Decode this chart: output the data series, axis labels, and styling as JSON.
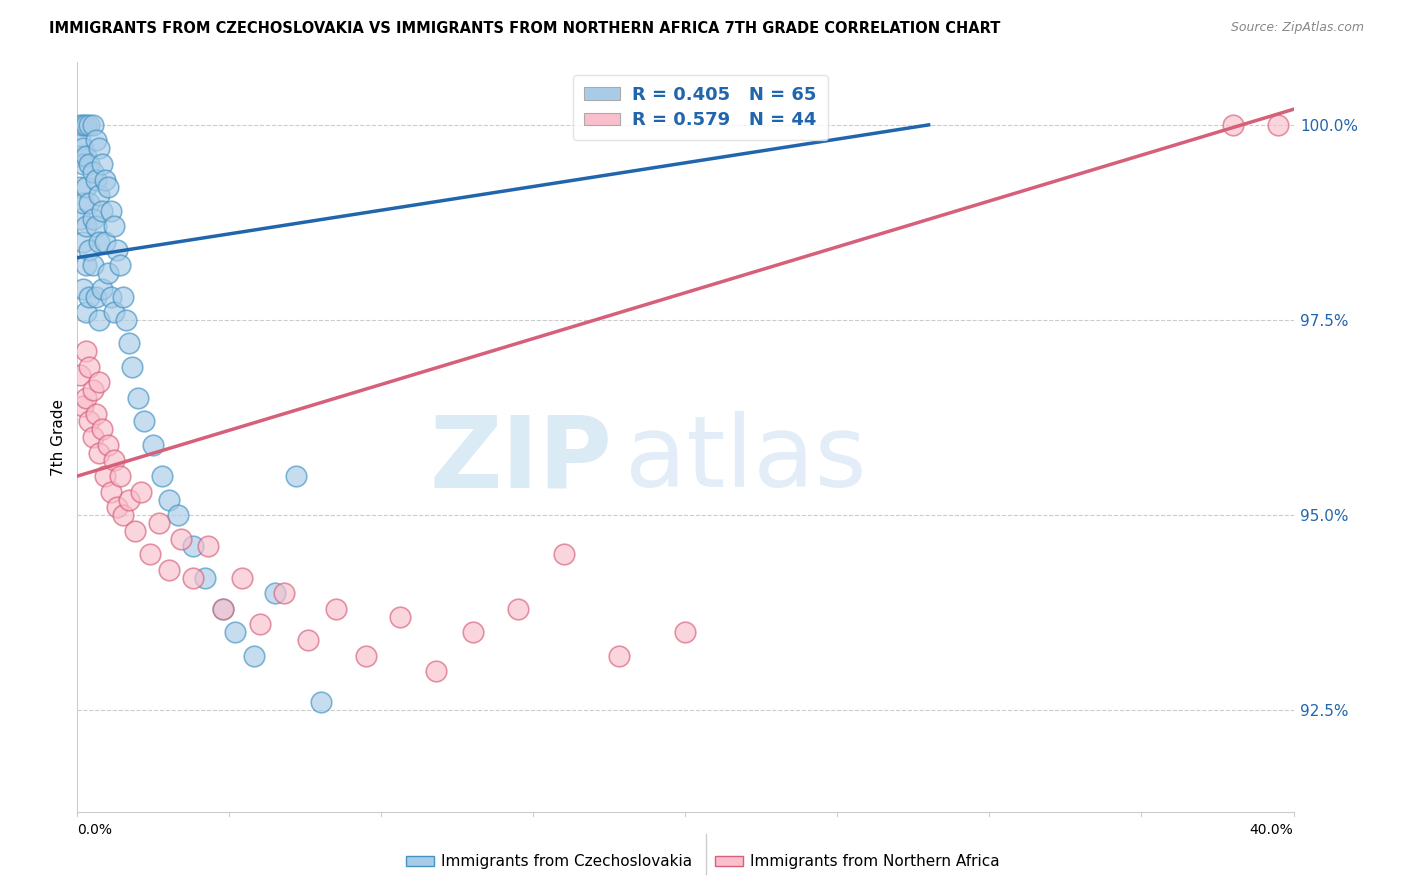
{
  "title": "IMMIGRANTS FROM CZECHOSLOVAKIA VS IMMIGRANTS FROM NORTHERN AFRICA 7TH GRADE CORRELATION CHART",
  "source": "Source: ZipAtlas.com",
  "ylabel": "7th Grade",
  "y_ticks": [
    92.5,
    95.0,
    97.5,
    100.0
  ],
  "y_tick_labels": [
    "92.5%",
    "95.0%",
    "97.5%",
    "100.0%"
  ],
  "x_min": 0.0,
  "x_max": 0.4,
  "y_min": 91.2,
  "y_max": 100.8,
  "legend_r_blue": "R = 0.405",
  "legend_n_blue": "N = 65",
  "legend_r_pink": "R = 0.579",
  "legend_n_pink": "N = 44",
  "blue_color": "#a8cce8",
  "pink_color": "#f9bfcc",
  "blue_edge_color": "#4393c3",
  "pink_edge_color": "#d6607a",
  "blue_line_color": "#2166ac",
  "pink_line_color": "#d6607a",
  "legend_text_color": "#2166ac",
  "blue_x": [
    0.001,
    0.001,
    0.001,
    0.001,
    0.001,
    0.002,
    0.002,
    0.002,
    0.002,
    0.002,
    0.002,
    0.003,
    0.003,
    0.003,
    0.003,
    0.003,
    0.003,
    0.004,
    0.004,
    0.004,
    0.004,
    0.004,
    0.005,
    0.005,
    0.005,
    0.005,
    0.006,
    0.006,
    0.006,
    0.006,
    0.007,
    0.007,
    0.007,
    0.007,
    0.008,
    0.008,
    0.008,
    0.009,
    0.009,
    0.01,
    0.01,
    0.011,
    0.011,
    0.012,
    0.012,
    0.013,
    0.014,
    0.015,
    0.016,
    0.017,
    0.018,
    0.02,
    0.022,
    0.025,
    0.028,
    0.03,
    0.033,
    0.038,
    0.042,
    0.048,
    0.052,
    0.058,
    0.065,
    0.072,
    0.08
  ],
  "blue_y": [
    100.0,
    99.8,
    99.6,
    99.2,
    98.8,
    100.0,
    99.7,
    99.5,
    99.0,
    98.5,
    97.9,
    100.0,
    99.6,
    99.2,
    98.7,
    98.2,
    97.6,
    100.0,
    99.5,
    99.0,
    98.4,
    97.8,
    100.0,
    99.4,
    98.8,
    98.2,
    99.8,
    99.3,
    98.7,
    97.8,
    99.7,
    99.1,
    98.5,
    97.5,
    99.5,
    98.9,
    97.9,
    99.3,
    98.5,
    99.2,
    98.1,
    98.9,
    97.8,
    98.7,
    97.6,
    98.4,
    98.2,
    97.8,
    97.5,
    97.2,
    96.9,
    96.5,
    96.2,
    95.9,
    95.5,
    95.2,
    95.0,
    94.6,
    94.2,
    93.8,
    93.5,
    93.2,
    94.0,
    95.5,
    92.6
  ],
  "pink_x": [
    0.001,
    0.002,
    0.003,
    0.003,
    0.004,
    0.004,
    0.005,
    0.005,
    0.006,
    0.007,
    0.007,
    0.008,
    0.009,
    0.01,
    0.011,
    0.012,
    0.013,
    0.014,
    0.015,
    0.017,
    0.019,
    0.021,
    0.024,
    0.027,
    0.03,
    0.034,
    0.038,
    0.043,
    0.048,
    0.054,
    0.06,
    0.068,
    0.076,
    0.085,
    0.095,
    0.106,
    0.118,
    0.13,
    0.145,
    0.16,
    0.178,
    0.2,
    0.38,
    0.395
  ],
  "pink_y": [
    96.8,
    96.4,
    97.1,
    96.5,
    96.9,
    96.2,
    96.6,
    96.0,
    96.3,
    96.7,
    95.8,
    96.1,
    95.5,
    95.9,
    95.3,
    95.7,
    95.1,
    95.5,
    95.0,
    95.2,
    94.8,
    95.3,
    94.5,
    94.9,
    94.3,
    94.7,
    94.2,
    94.6,
    93.8,
    94.2,
    93.6,
    94.0,
    93.4,
    93.8,
    93.2,
    93.7,
    93.0,
    93.5,
    93.8,
    94.5,
    93.2,
    93.5,
    100.0,
    100.0
  ],
  "blue_line_x0": 0.0,
  "blue_line_y0": 98.3,
  "blue_line_x1": 0.28,
  "blue_line_y1": 100.0,
  "pink_line_x0": 0.0,
  "pink_line_y0": 95.5,
  "pink_line_x1": 0.4,
  "pink_line_y1": 100.2
}
